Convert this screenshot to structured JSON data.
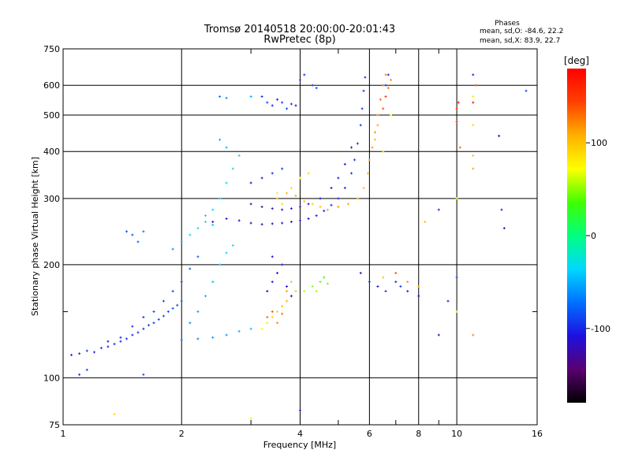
{
  "chart_data": {
    "type": "scatter",
    "title": "Tromsø 20140518 20:00:00-20:01:43",
    "subtitle": "RwPretec (8p)",
    "xlabel": "Frequency [MHz]",
    "ylabel": "Stationary phase Virtual Height [km]",
    "x_scale": "log",
    "y_scale": "log",
    "xlim": [
      1,
      16
    ],
    "ylim": [
      75,
      750
    ],
    "x_ticks": [
      1,
      2,
      4,
      6,
      8,
      10,
      16
    ],
    "x_minor_ticks": [
      3,
      5,
      7,
      9
    ],
    "y_ticks": [
      75,
      100,
      200,
      300,
      400,
      500,
      600,
      750
    ],
    "y_minor_ticks": [
      150
    ],
    "grid": true,
    "phases_box": {
      "title": "Phases",
      "line1": "mean, sd,O: -84.6, 22.2",
      "line2": "mean, sd,X: 83.9, 22.7"
    },
    "colorbar": {
      "label": "[deg]",
      "range": [
        -180,
        180
      ],
      "ticks": [
        100,
        0,
        -100
      ],
      "colors": [
        "#000000",
        "#5a0070",
        "#1e10e0",
        "#0070ff",
        "#00d8ff",
        "#00ff80",
        "#40ff00",
        "#ffff00",
        "#ffb000",
        "#ff4000",
        "#ff0000"
      ]
    },
    "series": [
      {
        "points": [
          [
            1.05,
            115,
            -100
          ],
          [
            1.1,
            116,
            -100
          ],
          [
            1.15,
            118,
            -95
          ],
          [
            1.2,
            117,
            -100
          ],
          [
            1.25,
            120,
            -98
          ],
          [
            1.3,
            121,
            -100
          ],
          [
            1.35,
            123,
            -96
          ],
          [
            1.4,
            125,
            -100
          ],
          [
            1.45,
            127,
            -97
          ],
          [
            1.5,
            130,
            -100
          ],
          [
            1.55,
            132,
            -95
          ],
          [
            1.6,
            135,
            -100
          ],
          [
            1.65,
            138,
            -92
          ],
          [
            1.7,
            140,
            -95
          ],
          [
            1.75,
            143,
            -90
          ],
          [
            1.8,
            146,
            -88
          ],
          [
            1.85,
            150,
            -90
          ],
          [
            1.9,
            153,
            -85
          ],
          [
            1.95,
            156,
            -88
          ],
          [
            2.0,
            160,
            -80
          ],
          [
            1.3,
            125,
            -102
          ],
          [
            1.4,
            128,
            -100
          ],
          [
            1.5,
            137,
            -98
          ],
          [
            1.6,
            145,
            -95
          ],
          [
            1.7,
            150,
            -92
          ],
          [
            1.8,
            160,
            -90
          ],
          [
            1.9,
            170,
            -86
          ],
          [
            2.0,
            180,
            -84
          ],
          [
            2.1,
            195,
            -80
          ],
          [
            2.2,
            210,
            -75
          ],
          [
            2.0,
            126,
            -70
          ],
          [
            2.2,
            127,
            -65
          ],
          [
            2.4,
            128,
            -60
          ],
          [
            2.6,
            130,
            -55
          ],
          [
            2.8,
            133,
            -50
          ],
          [
            3.0,
            135,
            -45
          ],
          [
            2.1,
            140,
            -60
          ],
          [
            2.2,
            150,
            -55
          ],
          [
            2.3,
            165,
            -50
          ],
          [
            2.4,
            180,
            -45
          ],
          [
            2.5,
            200,
            -40
          ],
          [
            2.6,
            215,
            -35
          ],
          [
            2.7,
            225,
            -30
          ],
          [
            2.3,
            270,
            -40
          ],
          [
            2.4,
            280,
            -35
          ],
          [
            2.5,
            300,
            -30
          ],
          [
            2.6,
            330,
            -25
          ],
          [
            2.7,
            360,
            -25
          ],
          [
            2.8,
            390,
            -30
          ],
          [
            2.5,
            430,
            -50
          ],
          [
            2.6,
            410,
            -45
          ],
          [
            2.2,
            250,
            -30
          ],
          [
            2.3,
            260,
            -30
          ],
          [
            2.4,
            255,
            -40
          ],
          [
            2.1,
            240,
            -35
          ],
          [
            2.0,
            230,
            -50
          ],
          [
            1.9,
            220,
            -60
          ],
          [
            1.5,
            240,
            -80
          ],
          [
            1.55,
            230,
            -75
          ],
          [
            1.6,
            245,
            -70
          ],
          [
            1.45,
            245,
            -85
          ],
          [
            2.4,
            260,
            -110
          ],
          [
            2.6,
            265,
            -115
          ],
          [
            2.8,
            262,
            -118
          ],
          [
            3.0,
            258,
            -120
          ],
          [
            3.2,
            256,
            -120
          ],
          [
            3.4,
            257,
            -118
          ],
          [
            3.6,
            258,
            -115
          ],
          [
            3.8,
            260,
            -112
          ],
          [
            4.0,
            262,
            -110
          ],
          [
            4.2,
            265,
            -108
          ],
          [
            4.4,
            270,
            -105
          ],
          [
            4.6,
            278,
            -102
          ],
          [
            4.8,
            288,
            -100
          ],
          [
            5.0,
            300,
            -98
          ],
          [
            5.2,
            320,
            -96
          ],
          [
            5.4,
            350,
            -95
          ],
          [
            5.5,
            380,
            -94
          ],
          [
            5.6,
            420,
            -94
          ],
          [
            5.7,
            470,
            -94
          ],
          [
            5.75,
            520,
            -94
          ],
          [
            5.8,
            580,
            -96
          ],
          [
            5.85,
            630,
            -97
          ],
          [
            3.0,
            290,
            -130
          ],
          [
            3.2,
            285,
            -125
          ],
          [
            3.4,
            282,
            -122
          ],
          [
            3.6,
            280,
            -120
          ],
          [
            3.8,
            282,
            -118
          ],
          [
            4.0,
            285,
            -116
          ],
          [
            4.2,
            290,
            -114
          ],
          [
            4.5,
            300,
            -112
          ],
          [
            4.8,
            320,
            -110
          ],
          [
            5.0,
            340,
            -108
          ],
          [
            5.2,
            370,
            -106
          ],
          [
            5.4,
            410,
            -104
          ],
          [
            3.0,
            330,
            -110
          ],
          [
            3.2,
            340,
            -105
          ],
          [
            3.4,
            350,
            -100
          ],
          [
            3.6,
            360,
            -95
          ],
          [
            3.2,
            135,
            70
          ],
          [
            3.3,
            140,
            80
          ],
          [
            3.4,
            145,
            90
          ],
          [
            3.5,
            150,
            95
          ],
          [
            3.6,
            155,
            100
          ],
          [
            3.7,
            160,
            105
          ],
          [
            3.8,
            165,
            100
          ],
          [
            3.9,
            170,
            95
          ],
          [
            3.3,
            145,
            130
          ],
          [
            3.4,
            150,
            140
          ],
          [
            3.5,
            140,
            120
          ],
          [
            3.6,
            148,
            130
          ],
          [
            3.7,
            170,
            110
          ],
          [
            3.8,
            180,
            100
          ],
          [
            3.3,
            170,
            -120
          ],
          [
            3.4,
            180,
            -115
          ],
          [
            3.5,
            190,
            -110
          ],
          [
            3.6,
            200,
            -105
          ],
          [
            3.4,
            210,
            -108
          ],
          [
            3.7,
            175,
            -110
          ],
          [
            3.8,
            165,
            -105
          ],
          [
            3.5,
            300,
            100
          ],
          [
            3.7,
            310,
            105
          ],
          [
            3.9,
            305,
            110
          ],
          [
            4.1,
            295,
            100
          ],
          [
            4.3,
            290,
            95
          ],
          [
            4.5,
            285,
            100
          ],
          [
            4.7,
            280,
            110
          ],
          [
            5.0,
            285,
            115
          ],
          [
            5.3,
            290,
            110
          ],
          [
            5.6,
            300,
            105
          ],
          [
            5.8,
            320,
            100
          ],
          [
            5.95,
            350,
            105
          ],
          [
            6.0,
            380,
            110
          ],
          [
            6.1,
            410,
            115
          ],
          [
            6.2,
            450,
            120
          ],
          [
            6.3,
            500,
            125
          ],
          [
            6.4,
            550,
            130
          ],
          [
            6.5,
            600,
            125
          ],
          [
            6.6,
            640,
            120
          ],
          [
            6.2,
            430,
            100
          ],
          [
            6.3,
            470,
            110
          ],
          [
            6.5,
            520,
            140
          ],
          [
            6.6,
            560,
            150
          ],
          [
            6.7,
            590,
            130
          ],
          [
            6.8,
            620,
            120
          ],
          [
            6.7,
            640,
            -100
          ],
          [
            6.6,
            600,
            -90
          ],
          [
            6.8,
            500,
            80
          ],
          [
            6.5,
            400,
            90
          ],
          [
            3.5,
            310,
            80
          ],
          [
            3.6,
            290,
            90
          ],
          [
            3.8,
            320,
            85
          ],
          [
            4.0,
            340,
            80
          ],
          [
            4.2,
            350,
            90
          ],
          [
            4.1,
            170,
            60
          ],
          [
            4.3,
            175,
            50
          ],
          [
            4.5,
            180,
            40
          ],
          [
            4.6,
            185,
            30
          ],
          [
            4.4,
            170,
            55
          ],
          [
            4.7,
            178,
            45
          ],
          [
            3.2,
            560,
            -95
          ],
          [
            3.3,
            540,
            -90
          ],
          [
            3.4,
            530,
            -100
          ],
          [
            3.5,
            550,
            -105
          ],
          [
            3.6,
            540,
            -95
          ],
          [
            3.7,
            520,
            -90
          ],
          [
            3.8,
            535,
            -100
          ],
          [
            3.9,
            530,
            -110
          ],
          [
            4.0,
            620,
            -100
          ],
          [
            4.1,
            640,
            -95
          ],
          [
            4.3,
            600,
            -90
          ],
          [
            4.4,
            590,
            -85
          ],
          [
            2.5,
            560,
            -70
          ],
          [
            2.6,
            555,
            -60
          ],
          [
            3.0,
            560,
            -50
          ],
          [
            5.7,
            190,
            -120
          ],
          [
            6.0,
            180,
            -100
          ],
          [
            6.3,
            175,
            -110
          ],
          [
            6.6,
            170,
            -90
          ],
          [
            7.0,
            180,
            -100
          ],
          [
            7.2,
            175,
            -95
          ],
          [
            7.5,
            170,
            -100
          ],
          [
            8.0,
            165,
            -110
          ],
          [
            6.5,
            185,
            100
          ],
          [
            7.0,
            190,
            140
          ],
          [
            7.5,
            180,
            120
          ],
          [
            8.0,
            175,
            110
          ],
          [
            8.3,
            260,
            100
          ],
          [
            9.0,
            280,
            -100
          ],
          [
            10.0,
            300,
            80
          ],
          [
            10.2,
            410,
            130
          ],
          [
            10.0,
            480,
            150
          ],
          [
            10.0,
            520,
            160
          ],
          [
            10.1,
            540,
            170
          ],
          [
            11.0,
            540,
            170
          ],
          [
            11.0,
            470,
            90
          ],
          [
            11.0,
            390,
            100
          ],
          [
            11.0,
            360,
            110
          ],
          [
            11.0,
            640,
            -100
          ],
          [
            11.0,
            560,
            80
          ],
          [
            11.2,
            600,
            140
          ],
          [
            12.8,
            440,
            -110
          ],
          [
            13.0,
            280,
            -100
          ],
          [
            13.2,
            250,
            -120
          ],
          [
            15.0,
            580,
            -90
          ],
          [
            11.0,
            130,
            120
          ],
          [
            10.0,
            150,
            80
          ],
          [
            4.0,
            82,
            -110
          ],
          [
            1.1,
            102,
            -100
          ],
          [
            1.15,
            105,
            -90
          ],
          [
            1.35,
            80,
            90
          ],
          [
            3.0,
            78,
            80
          ],
          [
            1.6,
            102,
            -85
          ],
          [
            9.0,
            130,
            -110
          ],
          [
            10.0,
            185,
            -90
          ],
          [
            9.5,
            160,
            -100
          ]
        ]
      }
    ]
  }
}
